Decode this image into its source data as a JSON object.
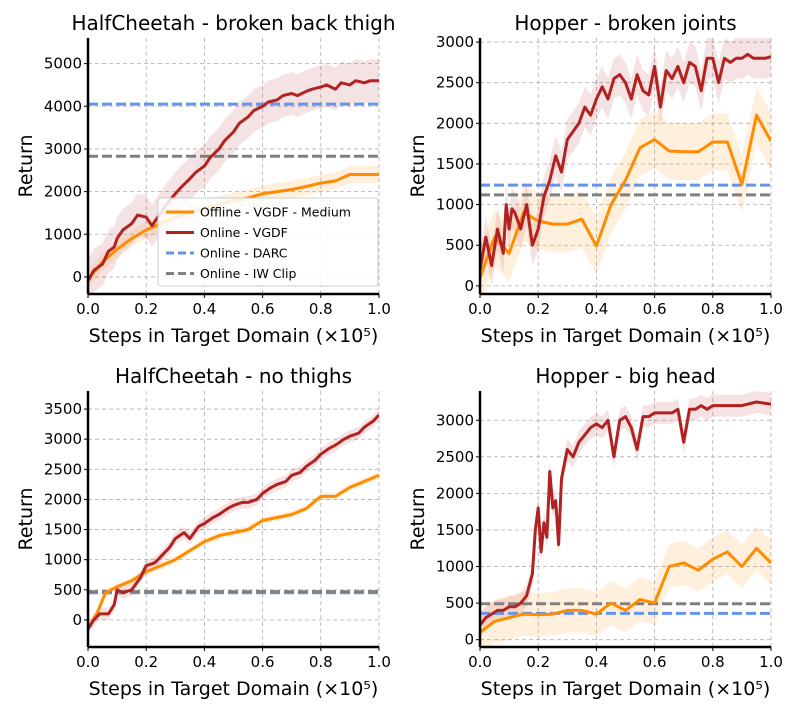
{
  "figure": {
    "colors": {
      "offline": "#ff8c00",
      "online": "#b22222",
      "darc": "#6495ed",
      "iwclip": "#808080"
    }
  },
  "chart_data": [
    {
      "type": "line",
      "title": "HalfCheetah - broken back thigh",
      "xlabel": "Steps in Target Domain (×10⁵)",
      "ylabel": "Return",
      "xlim": [
        0,
        1.0
      ],
      "ylim": [
        -400,
        5600
      ],
      "x_ticks": [
        "0.0",
        "0.2",
        "0.4",
        "0.6",
        "0.8",
        "1.0"
      ],
      "y_ticks": [
        "0",
        "1000",
        "2000",
        "3000",
        "4000",
        "5000"
      ],
      "grid": true,
      "legend_position": "lower-right",
      "series": [
        {
          "name": "Offline - VGDF - Medium",
          "color": "#ff8c00",
          "style": "solid",
          "x": [
            0,
            0.05,
            0.1,
            0.15,
            0.2,
            0.25,
            0.3,
            0.35,
            0.4,
            0.45,
            0.5,
            0.55,
            0.6,
            0.65,
            0.7,
            0.75,
            0.8,
            0.85,
            0.9,
            0.95,
            1.0
          ],
          "y": [
            -50,
            350,
            650,
            900,
            1100,
            1250,
            1400,
            1500,
            1600,
            1700,
            1780,
            1850,
            1950,
            2000,
            2050,
            2120,
            2200,
            2250,
            2400,
            2400,
            2400
          ],
          "band": 200
        },
        {
          "name": "Online - VGDF",
          "color": "#b22222",
          "style": "solid",
          "x": [
            0,
            0.02,
            0.05,
            0.07,
            0.09,
            0.1,
            0.12,
            0.15,
            0.17,
            0.2,
            0.22,
            0.25,
            0.27,
            0.3,
            0.32,
            0.35,
            0.37,
            0.4,
            0.42,
            0.45,
            0.47,
            0.5,
            0.52,
            0.55,
            0.57,
            0.6,
            0.62,
            0.65,
            0.67,
            0.7,
            0.72,
            0.75,
            0.77,
            0.8,
            0.82,
            0.85,
            0.87,
            0.9,
            0.92,
            0.95,
            0.97,
            1.0
          ],
          "y": [
            -100,
            150,
            300,
            600,
            700,
            900,
            1100,
            1250,
            1450,
            1400,
            1200,
            1500,
            1700,
            1950,
            2100,
            2300,
            2450,
            2600,
            2800,
            3000,
            3200,
            3400,
            3600,
            3750,
            3900,
            4000,
            4100,
            4150,
            4250,
            4300,
            4250,
            4350,
            4400,
            4450,
            4500,
            4400,
            4550,
            4500,
            4600,
            4550,
            4600,
            4600
          ],
          "band": 500
        },
        {
          "name": "Online - DARC",
          "color": "#6495ed",
          "style": "dashed",
          "x": [
            0,
            1.0
          ],
          "y": [
            4050,
            4050
          ]
        },
        {
          "name": "Online - IW Clip",
          "color": "#808080",
          "style": "dashed",
          "x": [
            0,
            1.0
          ],
          "y": [
            2830,
            2830
          ]
        }
      ]
    },
    {
      "type": "line",
      "title": "Hopper - broken joints",
      "xlabel": "Steps in Target Domain (×10⁵)",
      "ylabel": "Return",
      "xlim": [
        0,
        1.0
      ],
      "ylim": [
        -100,
        3050
      ],
      "x_ticks": [
        "0.0",
        "0.2",
        "0.4",
        "0.6",
        "0.8",
        "1.0"
      ],
      "y_ticks": [
        "0",
        "500",
        "1000",
        "1500",
        "2000",
        "2500",
        "3000"
      ],
      "grid": true,
      "series": [
        {
          "name": "Offline - VGDF - Medium",
          "color": "#ff8c00",
          "style": "solid",
          "x": [
            0,
            0.05,
            0.1,
            0.15,
            0.2,
            0.25,
            0.3,
            0.35,
            0.4,
            0.45,
            0.5,
            0.55,
            0.6,
            0.65,
            0.7,
            0.75,
            0.8,
            0.85,
            0.9,
            0.95,
            1.0
          ],
          "y": [
            100,
            600,
            400,
            900,
            800,
            760,
            760,
            820,
            490,
            1000,
            1300,
            1700,
            1800,
            1660,
            1650,
            1650,
            1770,
            1770,
            1250,
            2100,
            1780
          ],
          "band": 350
        },
        {
          "name": "Online - VGDF",
          "color": "#b22222",
          "style": "solid",
          "x": [
            0,
            0.02,
            0.04,
            0.06,
            0.08,
            0.09,
            0.1,
            0.11,
            0.12,
            0.14,
            0.16,
            0.18,
            0.2,
            0.22,
            0.24,
            0.26,
            0.28,
            0.3,
            0.32,
            0.34,
            0.36,
            0.38,
            0.4,
            0.42,
            0.44,
            0.46,
            0.48,
            0.5,
            0.52,
            0.54,
            0.56,
            0.58,
            0.6,
            0.62,
            0.64,
            0.66,
            0.68,
            0.7,
            0.72,
            0.74,
            0.76,
            0.78,
            0.8,
            0.82,
            0.84,
            0.86,
            0.88,
            0.9,
            0.92,
            0.94,
            0.96,
            0.98,
            1.0
          ],
          "y": [
            200,
            600,
            250,
            700,
            400,
            1000,
            700,
            950,
            900,
            700,
            1000,
            500,
            700,
            1100,
            1300,
            1600,
            1400,
            1800,
            1900,
            2000,
            2200,
            2100,
            2300,
            2450,
            2300,
            2550,
            2600,
            2500,
            2300,
            2600,
            2400,
            2350,
            2700,
            2200,
            2650,
            2550,
            2700,
            2500,
            2750,
            2700,
            2400,
            2800,
            2800,
            2500,
            2800,
            2750,
            2800,
            2800,
            2850,
            2800,
            2800,
            2800,
            2820
          ],
          "band": 250
        },
        {
          "name": "Online - DARC",
          "color": "#6495ed",
          "style": "dashed",
          "x": [
            0,
            1.0
          ],
          "y": [
            1240,
            1240
          ]
        },
        {
          "name": "Online - IW Clip",
          "color": "#808080",
          "style": "dashed",
          "x": [
            0,
            1.0
          ],
          "y": [
            1120,
            1120
          ]
        }
      ]
    },
    {
      "type": "line",
      "title": "HalfCheetah - no thighs",
      "xlabel": "Steps in Target Domain (×10⁵)",
      "ylabel": "Return",
      "xlim": [
        0,
        1.0
      ],
      "ylim": [
        -450,
        3800
      ],
      "x_ticks": [
        "0.0",
        "0.2",
        "0.4",
        "0.6",
        "0.8",
        "1.0"
      ],
      "y_ticks": [
        "0",
        "500",
        "1000",
        "1500",
        "2000",
        "2500",
        "3000",
        "3500"
      ],
      "grid": true,
      "series": [
        {
          "name": "Offline - VGDF - Medium",
          "color": "#ff8c00",
          "style": "solid",
          "x": [
            0,
            0.03,
            0.06,
            0.1,
            0.15,
            0.2,
            0.25,
            0.3,
            0.35,
            0.4,
            0.45,
            0.5,
            0.55,
            0.6,
            0.65,
            0.7,
            0.75,
            0.8,
            0.85,
            0.9,
            0.95,
            1.0
          ],
          "y": [
            -150,
            100,
            450,
            550,
            650,
            800,
            900,
            1000,
            1150,
            1300,
            1400,
            1450,
            1500,
            1650,
            1700,
            1750,
            1850,
            2050,
            2050,
            2200,
            2300,
            2400
          ],
          "band": 60
        },
        {
          "name": "Online - VGDF",
          "color": "#b22222",
          "style": "solid",
          "x": [
            0,
            0.02,
            0.04,
            0.07,
            0.09,
            0.1,
            0.12,
            0.15,
            0.18,
            0.2,
            0.23,
            0.25,
            0.28,
            0.3,
            0.33,
            0.35,
            0.38,
            0.4,
            0.43,
            0.45,
            0.48,
            0.5,
            0.53,
            0.55,
            0.58,
            0.6,
            0.63,
            0.65,
            0.68,
            0.7,
            0.73,
            0.75,
            0.78,
            0.8,
            0.83,
            0.85,
            0.88,
            0.9,
            0.93,
            0.95,
            0.98,
            1.0
          ],
          "y": [
            -150,
            0,
            100,
            100,
            250,
            500,
            450,
            500,
            700,
            900,
            950,
            1050,
            1200,
            1350,
            1450,
            1350,
            1550,
            1600,
            1700,
            1750,
            1850,
            1900,
            1950,
            1950,
            2000,
            2100,
            2200,
            2250,
            2300,
            2400,
            2450,
            2550,
            2650,
            2750,
            2850,
            2900,
            3000,
            3050,
            3100,
            3200,
            3300,
            3400
          ],
          "band": 100
        },
        {
          "name": "Online - DARC",
          "color": "#6495ed",
          "style": "dashed",
          "x": [
            0,
            1.0
          ],
          "y": [
            450,
            450
          ]
        },
        {
          "name": "Online - IW Clip",
          "color": "#808080",
          "style": "dashed",
          "x": [
            0,
            1.0
          ],
          "y": [
            470,
            470
          ]
        }
      ]
    },
    {
      "type": "line",
      "title": "Hopper - big head",
      "xlabel": "Steps in Target Domain (×10⁵)",
      "ylabel": "Return",
      "xlim": [
        0,
        1.0
      ],
      "ylim": [
        -100,
        3400
      ],
      "x_ticks": [
        "0.0",
        "0.2",
        "0.4",
        "0.6",
        "0.8",
        "1.0"
      ],
      "y_ticks": [
        "0",
        "500",
        "1000",
        "1500",
        "2000",
        "2500",
        "3000"
      ],
      "grid": true,
      "series": [
        {
          "name": "Offline - VGDF - Medium",
          "color": "#ff8c00",
          "style": "solid",
          "x": [
            0,
            0.05,
            0.1,
            0.15,
            0.2,
            0.25,
            0.3,
            0.35,
            0.4,
            0.45,
            0.5,
            0.55,
            0.6,
            0.65,
            0.7,
            0.75,
            0.8,
            0.85,
            0.9,
            0.95,
            1.0
          ],
          "y": [
            100,
            250,
            300,
            350,
            340,
            350,
            400,
            400,
            350,
            500,
            400,
            550,
            500,
            1000,
            1050,
            950,
            1100,
            1200,
            1000,
            1250,
            1050
          ],
          "band": 300
        },
        {
          "name": "Online - VGDF",
          "color": "#b22222",
          "style": "solid",
          "x": [
            0,
            0.02,
            0.04,
            0.06,
            0.08,
            0.1,
            0.12,
            0.14,
            0.16,
            0.18,
            0.19,
            0.2,
            0.21,
            0.22,
            0.23,
            0.24,
            0.25,
            0.26,
            0.27,
            0.28,
            0.29,
            0.3,
            0.32,
            0.34,
            0.36,
            0.38,
            0.4,
            0.42,
            0.44,
            0.46,
            0.48,
            0.5,
            0.52,
            0.54,
            0.56,
            0.58,
            0.6,
            0.62,
            0.64,
            0.66,
            0.68,
            0.7,
            0.72,
            0.74,
            0.76,
            0.78,
            0.8,
            0.85,
            0.9,
            0.95,
            1.0
          ],
          "y": [
            200,
            300,
            350,
            400,
            400,
            450,
            450,
            500,
            600,
            900,
            1500,
            1800,
            1200,
            1600,
            1400,
            2300,
            1800,
            1900,
            1300,
            2200,
            2400,
            2600,
            2500,
            2700,
            2800,
            2900,
            2950,
            2900,
            3000,
            2500,
            3000,
            3050,
            2900,
            2600,
            3050,
            3050,
            3100,
            3100,
            3100,
            3100,
            3150,
            2700,
            3150,
            3150,
            3200,
            3150,
            3200,
            3200,
            3200,
            3250,
            3220
          ],
          "band": 150
        },
        {
          "name": "Online - DARC",
          "color": "#6495ed",
          "style": "dashed",
          "x": [
            0,
            1.0
          ],
          "y": [
            360,
            360
          ]
        },
        {
          "name": "Online - IW Clip",
          "color": "#808080",
          "style": "dashed",
          "x": [
            0,
            1.0
          ],
          "y": [
            490,
            490
          ]
        }
      ]
    }
  ]
}
